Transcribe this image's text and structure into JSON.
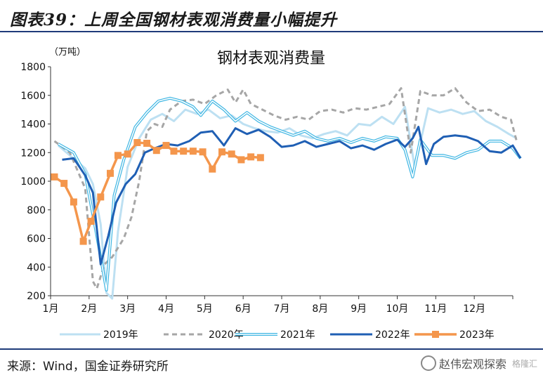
{
  "figure_title": "图表39：上周全国钢材表观消费量小幅提升",
  "source": "来源：Wind，国金证券研究所",
  "watermark": {
    "text": "赵伟宏观探索",
    "brand": "格隆汇"
  },
  "colors": {
    "s2019": "#bde0f2",
    "s2020": "#a6a6a6",
    "s2021": "#3eb6e3",
    "s2022": "#1f5fb4",
    "s2023": "#f4964c"
  },
  "chart_data": {
    "type": "line",
    "title": "钢材表观消费量",
    "unit": "（万吨）",
    "ylim": [
      200,
      1800
    ],
    "yticks": [
      200,
      400,
      600,
      800,
      1000,
      1200,
      1400,
      1600,
      1800
    ],
    "xlim": [
      1,
      13
    ],
    "xticks": [
      "1月",
      "2月",
      "3月",
      "4月",
      "5月",
      "6月",
      "7月",
      "8月",
      "9月",
      "10月",
      "11月",
      "12月"
    ],
    "legend_position": "bottom",
    "series": [
      {
        "name": "2019年",
        "style": "light",
        "points": [
          [
            1.2,
            1250
          ],
          [
            1.5,
            1180
          ],
          [
            1.9,
            1090
          ],
          [
            2.1,
            980
          ],
          [
            2.3,
            700
          ],
          [
            2.45,
            220
          ],
          [
            2.6,
            180
          ],
          [
            2.75,
            650
          ],
          [
            3.0,
            1100
          ],
          [
            3.3,
            1300
          ],
          [
            3.6,
            1430
          ],
          [
            3.9,
            1470
          ],
          [
            4.2,
            1420
          ],
          [
            4.5,
            1500
          ],
          [
            4.8,
            1470
          ],
          [
            5.1,
            1500
          ],
          [
            5.4,
            1440
          ],
          [
            5.7,
            1460
          ],
          [
            6.0,
            1400
          ],
          [
            6.3,
            1370
          ],
          [
            6.6,
            1350
          ],
          [
            6.9,
            1340
          ],
          [
            7.2,
            1370
          ],
          [
            7.5,
            1320
          ],
          [
            7.8,
            1300
          ],
          [
            8.1,
            1330
          ],
          [
            8.4,
            1350
          ],
          [
            8.7,
            1320
          ],
          [
            9.0,
            1400
          ],
          [
            9.3,
            1390
          ],
          [
            9.6,
            1450
          ],
          [
            9.9,
            1400
          ],
          [
            10.2,
            1520
          ],
          [
            10.45,
            1100
          ],
          [
            10.6,
            1270
          ],
          [
            10.8,
            1510
          ],
          [
            11.1,
            1480
          ],
          [
            11.4,
            1500
          ],
          [
            11.7,
            1470
          ],
          [
            12.0,
            1490
          ],
          [
            12.3,
            1420
          ],
          [
            12.6,
            1380
          ],
          [
            12.9,
            1330
          ],
          [
            13.1,
            1300
          ]
        ]
      },
      {
        "name": "2020年",
        "style": "dashed",
        "points": [
          [
            1.1,
            1280
          ],
          [
            1.5,
            1200
          ],
          [
            1.9,
            950
          ],
          [
            2.1,
            300
          ],
          [
            2.2,
            250
          ],
          [
            2.4,
            420
          ],
          [
            2.6,
            470
          ],
          [
            2.9,
            600
          ],
          [
            3.1,
            750
          ],
          [
            3.3,
            1000
          ],
          [
            3.5,
            1350
          ],
          [
            3.7,
            1400
          ],
          [
            3.9,
            1380
          ],
          [
            4.1,
            1500
          ],
          [
            4.4,
            1560
          ],
          [
            4.7,
            1570
          ],
          [
            5.0,
            1540
          ],
          [
            5.3,
            1600
          ],
          [
            5.6,
            1640
          ],
          [
            5.8,
            1550
          ],
          [
            6.0,
            1640
          ],
          [
            6.2,
            1540
          ],
          [
            6.5,
            1500
          ],
          [
            6.8,
            1460
          ],
          [
            7.1,
            1430
          ],
          [
            7.4,
            1450
          ],
          [
            7.7,
            1430
          ],
          [
            8.0,
            1490
          ],
          [
            8.3,
            1500
          ],
          [
            8.6,
            1480
          ],
          [
            8.9,
            1510
          ],
          [
            9.2,
            1500
          ],
          [
            9.5,
            1520
          ],
          [
            9.8,
            1540
          ],
          [
            10.1,
            1650
          ],
          [
            10.35,
            1200
          ],
          [
            10.6,
            1630
          ],
          [
            10.9,
            1600
          ],
          [
            11.2,
            1600
          ],
          [
            11.5,
            1650
          ],
          [
            11.8,
            1550
          ],
          [
            12.1,
            1490
          ],
          [
            12.4,
            1500
          ],
          [
            12.7,
            1450
          ],
          [
            12.95,
            1430
          ],
          [
            13.1,
            1280
          ]
        ]
      },
      {
        "name": "2021年",
        "style": "mid",
        "points": [
          [
            1.2,
            1260
          ],
          [
            1.6,
            1200
          ],
          [
            1.9,
            1050
          ],
          [
            2.2,
            620
          ],
          [
            2.45,
            240
          ],
          [
            2.65,
            900
          ],
          [
            2.9,
            1150
          ],
          [
            3.2,
            1380
          ],
          [
            3.5,
            1480
          ],
          [
            3.8,
            1560
          ],
          [
            4.1,
            1580
          ],
          [
            4.4,
            1560
          ],
          [
            4.7,
            1520
          ],
          [
            4.9,
            1460
          ],
          [
            5.2,
            1560
          ],
          [
            5.5,
            1500
          ],
          [
            5.8,
            1420
          ],
          [
            6.1,
            1480
          ],
          [
            6.4,
            1420
          ],
          [
            6.7,
            1380
          ],
          [
            7.0,
            1350
          ],
          [
            7.3,
            1320
          ],
          [
            7.6,
            1350
          ],
          [
            7.9,
            1300
          ],
          [
            8.2,
            1280
          ],
          [
            8.5,
            1300
          ],
          [
            8.8,
            1270
          ],
          [
            9.1,
            1300
          ],
          [
            9.4,
            1280
          ],
          [
            9.7,
            1310
          ],
          [
            10.0,
            1300
          ],
          [
            10.2,
            1220
          ],
          [
            10.4,
            1030
          ],
          [
            10.6,
            1290
          ],
          [
            10.9,
            1180
          ],
          [
            11.2,
            1180
          ],
          [
            11.5,
            1160
          ],
          [
            11.8,
            1200
          ],
          [
            12.1,
            1220
          ],
          [
            12.4,
            1280
          ],
          [
            12.7,
            1280
          ],
          [
            13.0,
            1230
          ],
          [
            13.2,
            1160
          ]
        ]
      },
      {
        "name": "2022年",
        "style": "dark",
        "points": [
          [
            1.3,
            1150
          ],
          [
            1.6,
            1160
          ],
          [
            1.9,
            1040
          ],
          [
            2.1,
            920
          ],
          [
            2.3,
            420
          ],
          [
            2.5,
            620
          ],
          [
            2.7,
            850
          ],
          [
            2.95,
            980
          ],
          [
            3.2,
            1050
          ],
          [
            3.45,
            1200
          ],
          [
            3.7,
            1230
          ],
          [
            4.0,
            1260
          ],
          [
            4.3,
            1250
          ],
          [
            4.6,
            1280
          ],
          [
            4.9,
            1340
          ],
          [
            5.2,
            1350
          ],
          [
            5.5,
            1250
          ],
          [
            5.8,
            1370
          ],
          [
            6.1,
            1330
          ],
          [
            6.4,
            1360
          ],
          [
            6.7,
            1310
          ],
          [
            7.0,
            1240
          ],
          [
            7.3,
            1250
          ],
          [
            7.6,
            1280
          ],
          [
            7.9,
            1240
          ],
          [
            8.2,
            1260
          ],
          [
            8.5,
            1280
          ],
          [
            8.8,
            1230
          ],
          [
            9.1,
            1250
          ],
          [
            9.4,
            1220
          ],
          [
            9.7,
            1260
          ],
          [
            10.0,
            1290
          ],
          [
            10.2,
            1240
          ],
          [
            10.4,
            1300
          ],
          [
            10.55,
            1380
          ],
          [
            10.75,
            1120
          ],
          [
            10.95,
            1260
          ],
          [
            11.2,
            1310
          ],
          [
            11.5,
            1320
          ],
          [
            11.8,
            1310
          ],
          [
            12.1,
            1280
          ],
          [
            12.4,
            1210
          ],
          [
            12.7,
            1200
          ],
          [
            13.0,
            1250
          ],
          [
            13.2,
            1160
          ]
        ]
      },
      {
        "name": "2023年",
        "style": "orange",
        "markers": true,
        "points": [
          [
            1.1,
            1030
          ],
          [
            1.35,
            985
          ],
          [
            1.6,
            855
          ],
          [
            1.85,
            580
          ],
          [
            2.05,
            720
          ],
          [
            2.3,
            890
          ],
          [
            2.55,
            1055
          ],
          [
            2.75,
            1180
          ],
          [
            3.0,
            1190
          ],
          [
            3.25,
            1270
          ],
          [
            3.5,
            1265
          ],
          [
            3.75,
            1215
          ],
          [
            4.0,
            1250
          ],
          [
            4.2,
            1210
          ],
          [
            4.45,
            1210
          ],
          [
            4.7,
            1210
          ],
          [
            4.95,
            1205
          ],
          [
            5.2,
            1085
          ],
          [
            5.45,
            1205
          ],
          [
            5.7,
            1190
          ],
          [
            5.95,
            1150
          ],
          [
            6.2,
            1170
          ],
          [
            6.45,
            1165
          ]
        ]
      }
    ]
  }
}
